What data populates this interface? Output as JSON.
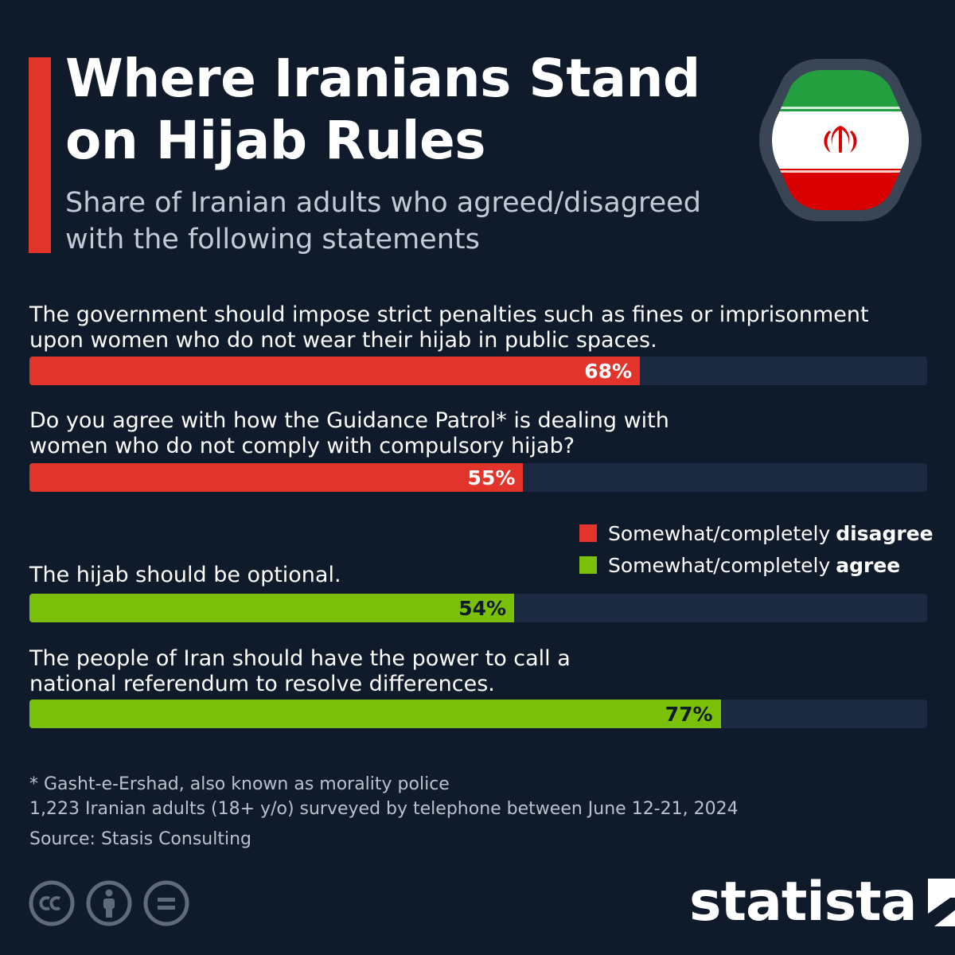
{
  "header": {
    "title": "Where Iranians Stand on Hijab Rules",
    "subtitle": "Share of Iranian adults who agreed/disagreed with the following statements"
  },
  "colors": {
    "disagree": "#e3342c",
    "agree": "#7ac008",
    "background": "#0f1a2b",
    "track": "#1b2941"
  },
  "icons": {
    "flag": "iran-flag-icon",
    "brand_mark": "statista-logo-icon",
    "licenses": [
      "cc-icon",
      "by-person-icon",
      "nd-equals-icon"
    ]
  },
  "chart_data": {
    "type": "bar",
    "orientation": "horizontal",
    "xlim": [
      0,
      100
    ],
    "grid": false,
    "legend_placement": "right",
    "unit": "%",
    "legend": [
      {
        "key": "disagree",
        "prefix": "Somewhat/completely",
        "emphasis": "disagree"
      },
      {
        "key": "agree",
        "prefix": "Somewhat/completely",
        "emphasis": "agree"
      }
    ],
    "bars": [
      {
        "question": "The government should impose strict penalties such as fines or imprisonment upon women who do not wear their hijab in public spaces.",
        "value": 68,
        "label": "68%",
        "group": "disagree"
      },
      {
        "question": "Do you agree with how the Guidance Patrol* is dealing with women who do not comply with compulsory hijab?",
        "value": 55,
        "label": "55%",
        "group": "disagree"
      },
      {
        "question": "The hijab should be optional.",
        "value": 54,
        "label": "54%",
        "group": "agree"
      },
      {
        "question": "The people of Iran should have the power to call a national referendum to resolve differences.",
        "value": 77,
        "label": "77%",
        "group": "agree"
      }
    ]
  },
  "footer": {
    "footnote": "* Gasht-e-Ershad, also known as morality police",
    "survey_note": "1,223 Iranian adults (18+ y/o) surveyed by telephone between June 12-21, 2024",
    "source": "Source: Stasis Consulting",
    "brand": "statista"
  }
}
